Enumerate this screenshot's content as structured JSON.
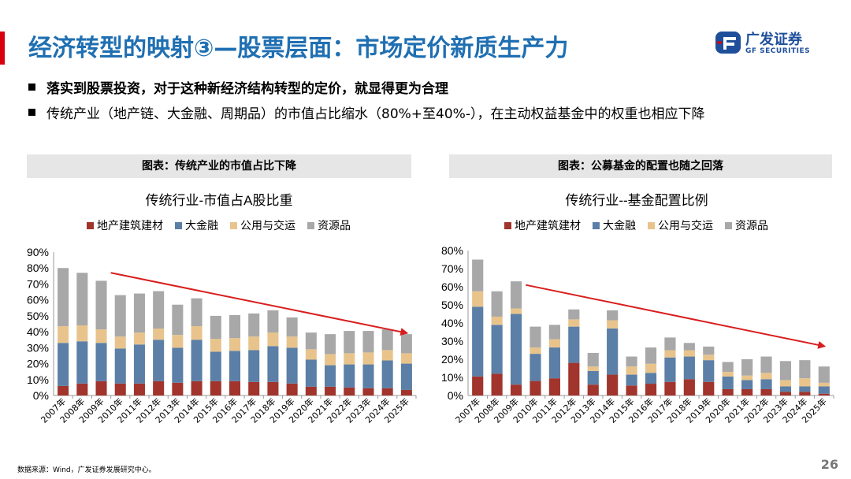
{
  "title": "经济转型的映射③—股票层面：市场定价新质生产力",
  "logo": {
    "cn": "广发证券",
    "en": "GF SECURITIES"
  },
  "bullets": [
    "落实到股票投资，对于这种新经济结构转型的定价，就显得更为合理",
    "传统产业（地产链、大金融、周期品）的市值占比缩水（80%+至40%-），在主动权益基金中的权重也相应下降"
  ],
  "captions": [
    "图表：传统产业的市值占比下降",
    "图表：公募基金的配置也随之回落"
  ],
  "footer": "数据来源：Wind，广发证券发展研究中心。",
  "page_number": "26",
  "colors": {
    "real_estate": "#a1342c",
    "finance": "#5b7fa6",
    "utilities": "#e8c48c",
    "resources": "#a8a8a8",
    "arrow": "#d81e1e"
  },
  "chart_data": [
    {
      "type": "bar",
      "stacked": true,
      "title": "传统行业-市值占A股比重",
      "categories": [
        "2007年",
        "2008年",
        "2009年",
        "2010年",
        "2011年",
        "2012年",
        "2013年",
        "2014年",
        "2015年",
        "2016年",
        "2017年",
        "2018年",
        "2019年",
        "2020年",
        "2021年",
        "2022年",
        "2023年",
        "2024年",
        "2025年"
      ],
      "series": [
        {
          "name": "地产建筑建材",
          "values": [
            6,
            7.5,
            9,
            7.5,
            7.5,
            9,
            8,
            9,
            9,
            9,
            8.5,
            8.5,
            7.5,
            5.5,
            5.5,
            5,
            4.5,
            4.5,
            3.5
          ]
        },
        {
          "name": "大金融",
          "values": [
            27,
            26.5,
            24,
            22,
            24.5,
            26,
            22,
            26,
            18.5,
            19,
            20,
            22.5,
            22.5,
            17,
            13.5,
            14.5,
            15,
            17.5,
            16.5
          ]
        },
        {
          "name": "公用与交运",
          "values": [
            10.5,
            10,
            8.5,
            7.5,
            7.5,
            7,
            8,
            8.5,
            8,
            8,
            8.5,
            8.5,
            7,
            6.5,
            7,
            7,
            7.5,
            6.5,
            6.5
          ]
        },
        {
          "name": "资源品",
          "values": [
            36.5,
            33,
            30.5,
            26,
            24.5,
            23.5,
            19,
            17.5,
            14.5,
            14.5,
            14.5,
            14,
            12,
            10.5,
            12.5,
            14,
            13.5,
            13,
            12
          ]
        }
      ],
      "ylim": [
        0,
        90
      ],
      "yticks": [
        "0%",
        "10%",
        "20%",
        "30%",
        "40%",
        "50%",
        "60%",
        "70%",
        "80%",
        "90%"
      ],
      "trend": {
        "from": [
          "2010年",
          77
        ],
        "to": [
          "2025年",
          39
        ]
      }
    },
    {
      "type": "bar",
      "stacked": true,
      "title": "传统行业--基金配置比例",
      "categories": [
        "2007年",
        "2008年",
        "2009年",
        "2010年",
        "2011年",
        "2012年",
        "2013年",
        "2014年",
        "2015年",
        "2016年",
        "2017年",
        "2018年",
        "2019年",
        "2020年",
        "2021年",
        "2022年",
        "2023年",
        "2024年",
        "2025年"
      ],
      "series": [
        {
          "name": "地产建筑建材",
          "values": [
            10.5,
            12,
            6,
            8,
            9.5,
            18,
            6,
            11.5,
            5.5,
            6.5,
            7.5,
            9,
            7.5,
            3.5,
            3.5,
            3.5,
            2,
            2,
            1
          ]
        },
        {
          "name": "大金融",
          "values": [
            38.5,
            27,
            39,
            15,
            17,
            20,
            7.5,
            25.5,
            6,
            6,
            13.5,
            12.5,
            12,
            7,
            5,
            5.5,
            3,
            3,
            4
          ]
        },
        {
          "name": "公用与交运",
          "values": [
            8.5,
            4.5,
            3,
            3.5,
            4.5,
            4,
            2.5,
            4.5,
            4.5,
            5,
            4,
            3.5,
            3,
            2.5,
            2.5,
            3.5,
            3.5,
            4.5,
            2
          ]
        },
        {
          "name": "资源品",
          "values": [
            17.5,
            14,
            15,
            11.5,
            8,
            5.5,
            7.5,
            5.5,
            5.5,
            9,
            7,
            4,
            4.5,
            5.5,
            9,
            9,
            10.5,
            10,
            9
          ]
        }
      ],
      "ylim": [
        0,
        80
      ],
      "yticks": [
        "0%",
        "10%",
        "20%",
        "30%",
        "40%",
        "50%",
        "60%",
        "70%",
        "80%"
      ],
      "trend": {
        "from": [
          "2010年",
          61
        ],
        "to": [
          "2025年",
          27
        ]
      }
    }
  ]
}
